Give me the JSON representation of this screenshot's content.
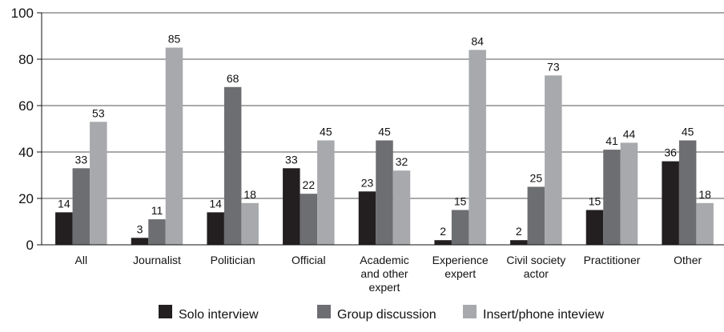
{
  "chart_data": {
    "type": "bar",
    "categories": [
      [
        "All"
      ],
      [
        "Journalist"
      ],
      [
        "Politician"
      ],
      [
        "Official"
      ],
      [
        "Academic",
        "and other",
        "expert"
      ],
      [
        "Experience",
        "expert"
      ],
      [
        "Civil society",
        "actor"
      ],
      [
        "Practitioner"
      ],
      [
        "Other"
      ]
    ],
    "series": [
      {
        "name": "Solo interview",
        "color": "#231f20",
        "values": [
          14,
          3,
          14,
          33,
          23,
          2,
          2,
          15,
          36
        ]
      },
      {
        "name": "Group discussion",
        "color": "#6d6e71",
        "values": [
          33,
          11,
          68,
          22,
          45,
          15,
          25,
          41,
          45
        ]
      },
      {
        "name": "Insert/phone inteview",
        "color": "#a7a9ac",
        "values": [
          53,
          85,
          18,
          45,
          32,
          84,
          73,
          44,
          18
        ]
      }
    ],
    "yticks": [
      0,
      20,
      40,
      60,
      80,
      100
    ],
    "ylim": [
      0,
      100
    ],
    "grid": true,
    "legend": "bottom"
  }
}
